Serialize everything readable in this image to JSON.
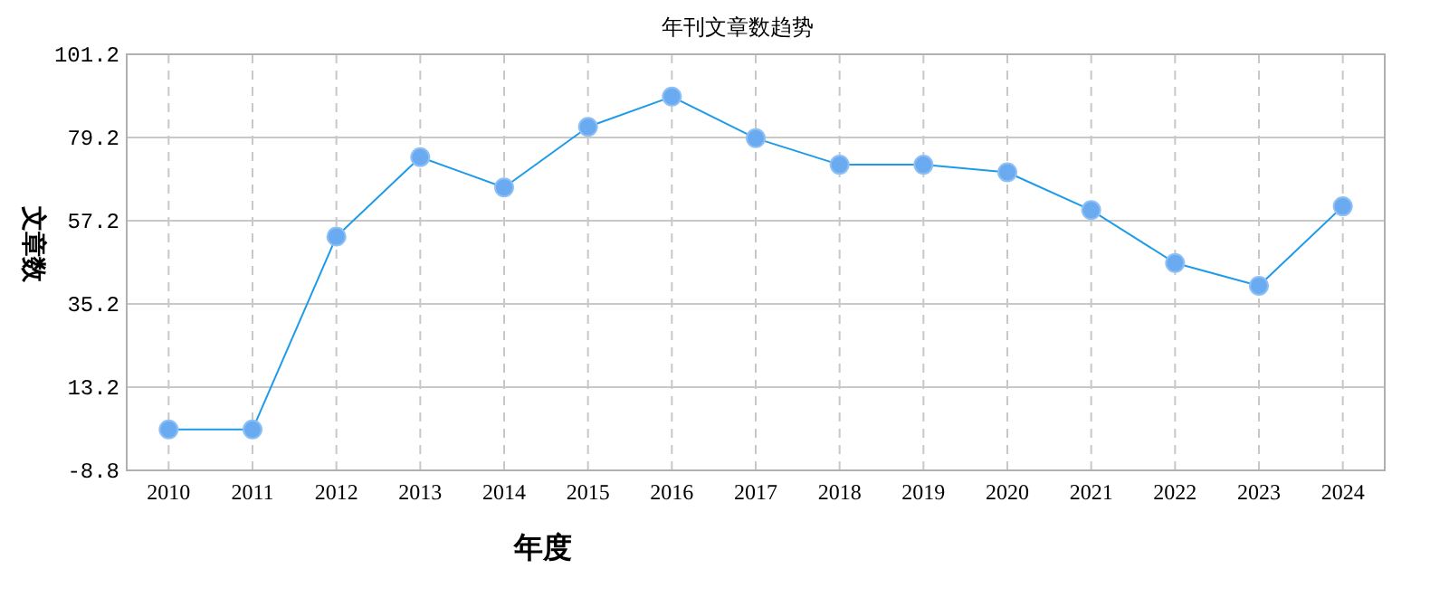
{
  "chart_data": {
    "type": "line",
    "title": "年刊文章数趋势",
    "xlabel": "年度",
    "ylabel": "文章数",
    "categories": [
      "2010",
      "2011",
      "2012",
      "2013",
      "2014",
      "2015",
      "2016",
      "2017",
      "2018",
      "2019",
      "2020",
      "2021",
      "2022",
      "2023",
      "2024"
    ],
    "series": [
      {
        "color": "#1e9be8",
        "values": [
          2,
          2,
          53,
          74,
          66,
          82,
          90,
          79,
          72,
          72,
          70,
          60,
          46,
          40,
          61
        ]
      }
    ],
    "ylim": [
      -8.8,
      101.2
    ],
    "yticks": [
      -8.8,
      13.2,
      35.2,
      57.2,
      79.2,
      101.2
    ],
    "grid": true,
    "marker": "circle"
  }
}
